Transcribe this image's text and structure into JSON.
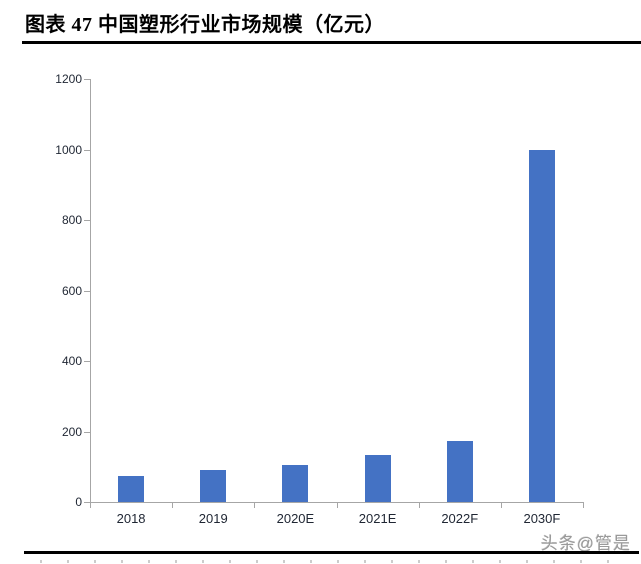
{
  "header": {
    "title": "图表 47 中国塑形行业市场规模（亿元）"
  },
  "watermark": {
    "text": "头条@管是"
  },
  "chart_data": {
    "type": "bar",
    "title": "中国塑形行业市场规模（亿元）",
    "categories": [
      "2018",
      "2019",
      "2020E",
      "2021E",
      "2022F",
      "2030F"
    ],
    "values": [
      73,
      90,
      105,
      133,
      173,
      1000
    ],
    "xlabel": "",
    "ylabel": "",
    "ylim": [
      0,
      1200
    ],
    "ytick_interval": 200,
    "yticks": [
      0,
      200,
      400,
      600,
      800,
      1000,
      1200
    ],
    "bar_color": "#4472C4",
    "axis_color": "#A6A6A6",
    "label_color": "#1F2633",
    "grid": false,
    "legend": "none"
  }
}
